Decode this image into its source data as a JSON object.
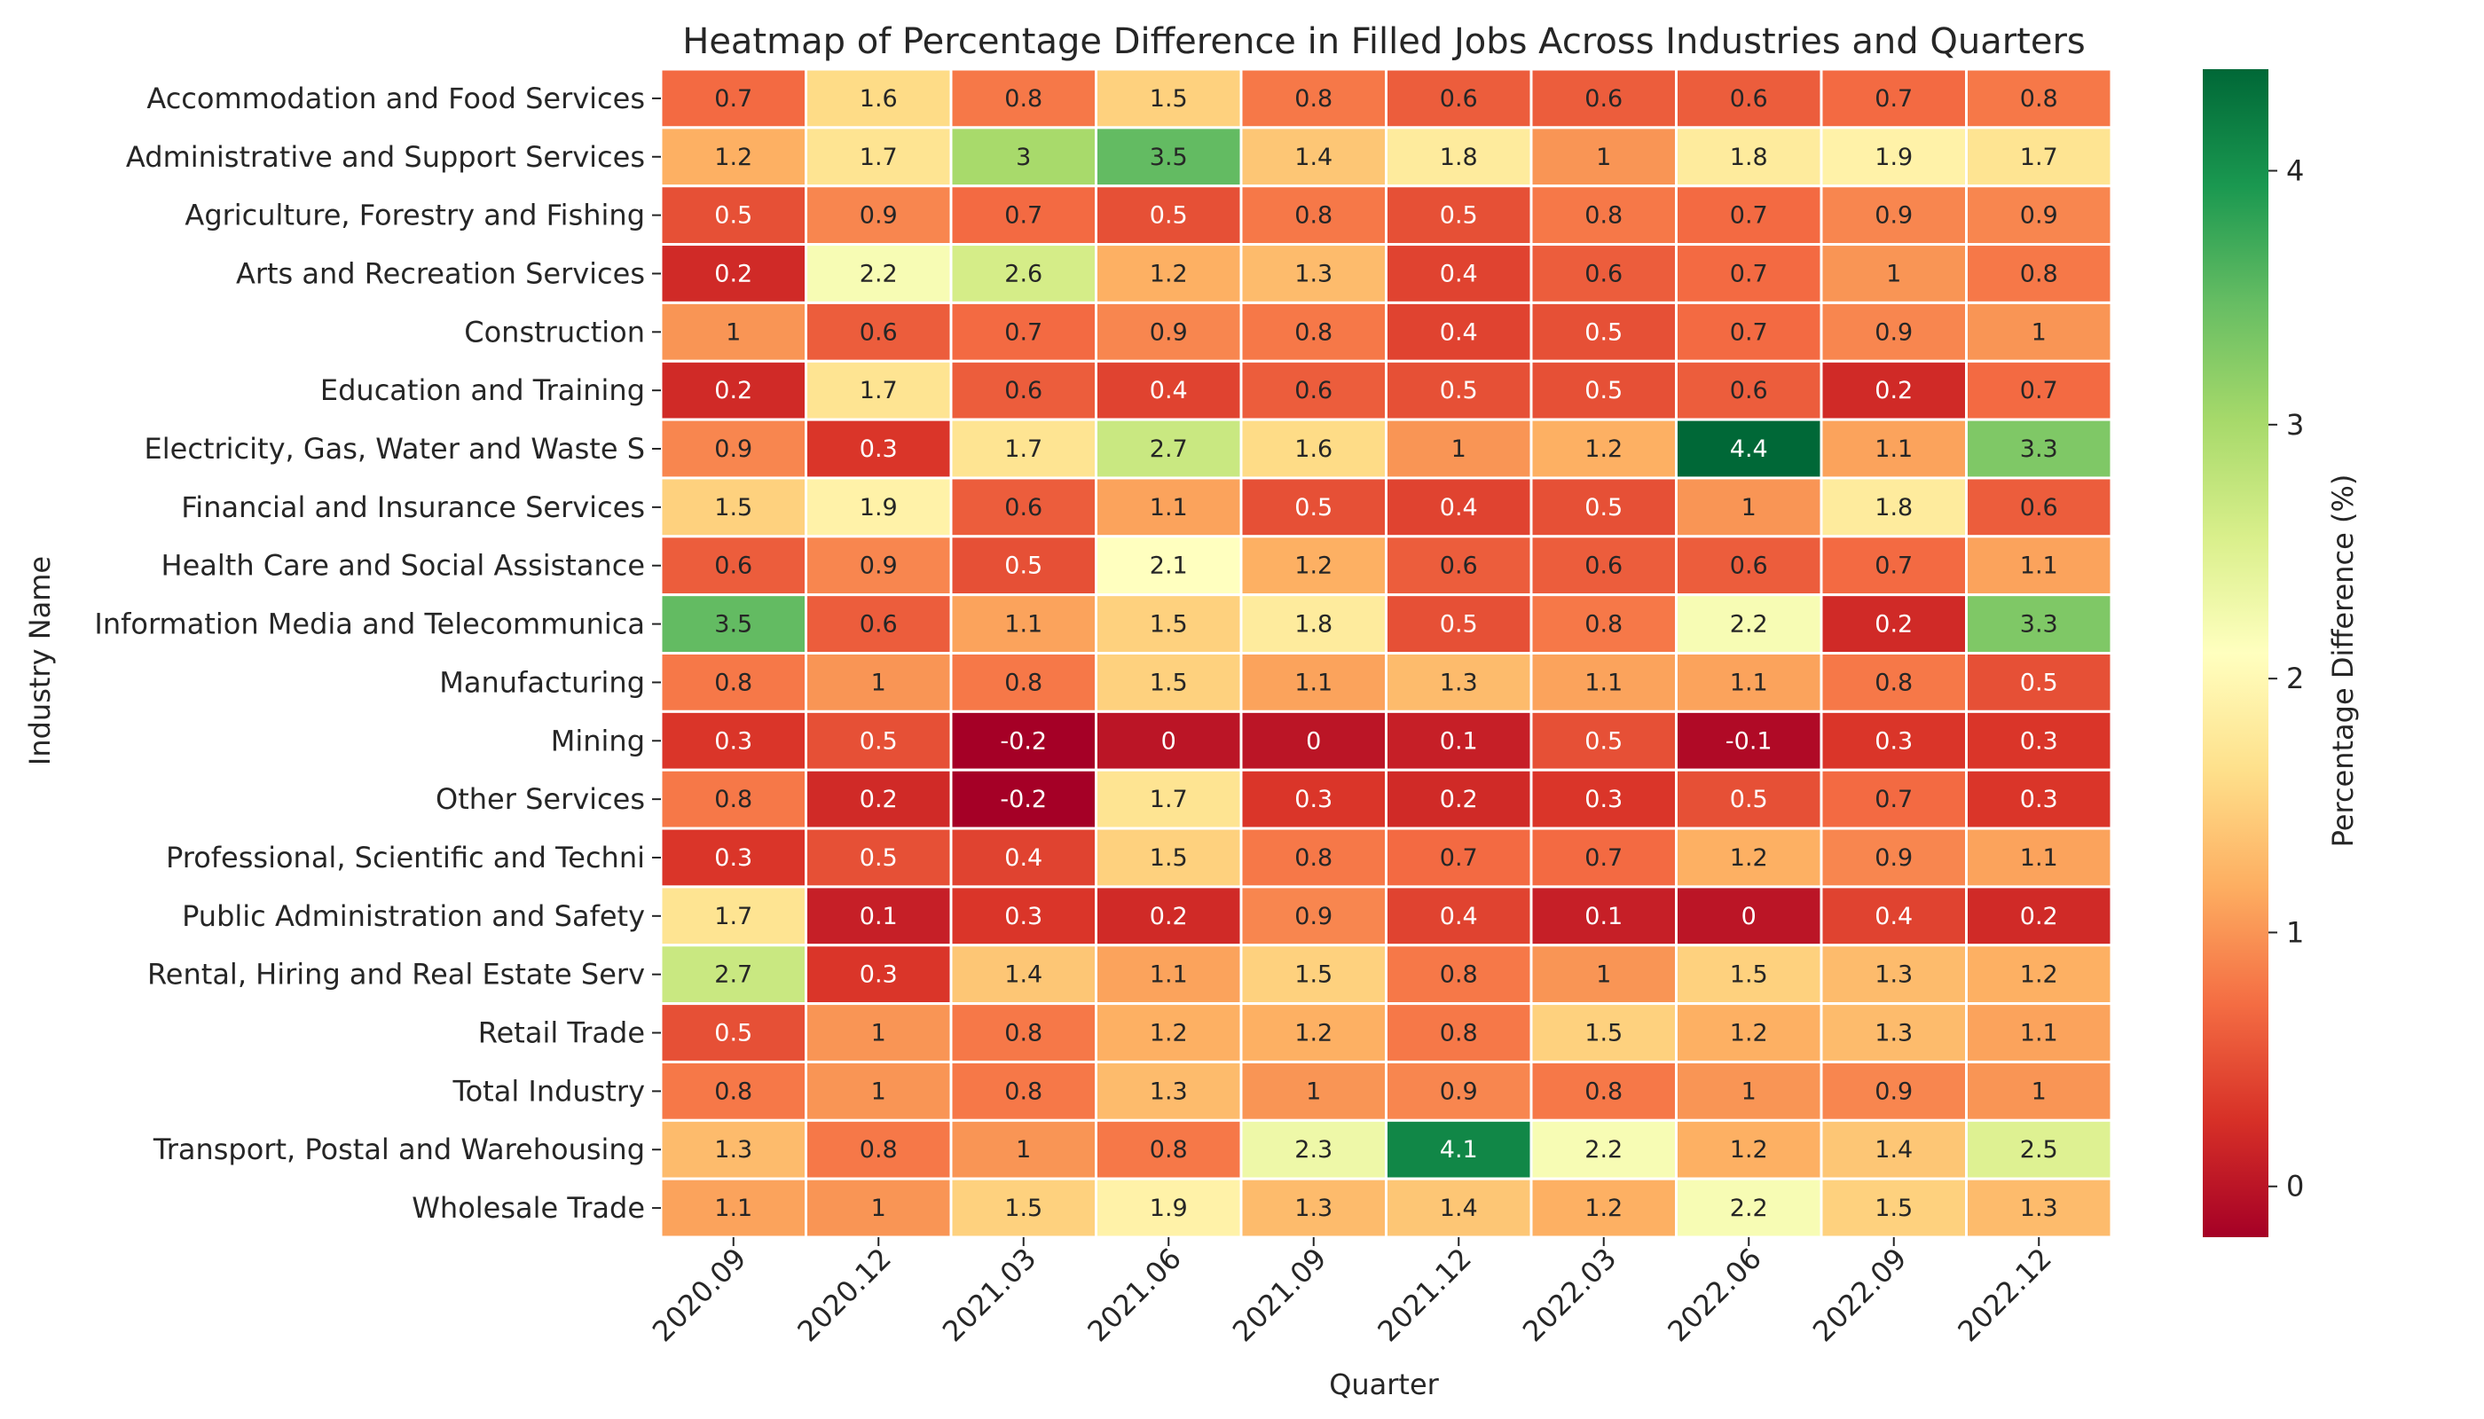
{
  "chart_data": {
    "type": "heatmap",
    "title": "Heatmap of Percentage Difference in Filled Jobs Across Industries and Quarters",
    "xlabel": "Quarter",
    "ylabel": "Industry Name",
    "colorbar_label": "Percentage Difference (%)",
    "colormap": "RdYlGn",
    "color_range": [
      -0.2,
      4.4
    ],
    "colorbar_ticks": [
      0,
      1,
      2,
      3,
      4
    ],
    "annotated": true,
    "x": [
      "2020.09",
      "2020.12",
      "2021.03",
      "2021.06",
      "2021.09",
      "2021.12",
      "2022.03",
      "2022.06",
      "2022.09",
      "2022.12"
    ],
    "y": [
      "Accommodation and Food Services",
      "Administrative and Support Services",
      "Agriculture, Forestry and Fishing",
      "Arts and Recreation Services",
      "Construction",
      "Education and Training",
      "Electricity, Gas, Water and Waste S",
      "Financial and Insurance Services",
      "Health Care and Social Assistance",
      "Information Media and Telecommunica",
      "Manufacturing",
      "Mining",
      "Other Services",
      "Professional, Scientific and Techni",
      "Public Administration and Safety",
      "Rental, Hiring and Real Estate Serv",
      "Retail Trade",
      "Total Industry",
      "Transport, Postal and Warehousing",
      "Wholesale Trade"
    ],
    "values": [
      [
        0.7,
        1.6,
        0.8,
        1.5,
        0.8,
        0.6,
        0.6,
        0.6,
        0.7,
        0.8
      ],
      [
        1.2,
        1.7,
        3,
        3.5,
        1.4,
        1.8,
        1,
        1.8,
        1.9,
        1.7
      ],
      [
        0.5,
        0.9,
        0.7,
        0.5,
        0.8,
        0.5,
        0.8,
        0.7,
        0.9,
        0.9
      ],
      [
        0.2,
        2.2,
        2.6,
        1.2,
        1.3,
        0.4,
        0.6,
        0.7,
        1,
        0.8
      ],
      [
        1,
        0.6,
        0.7,
        0.9,
        0.8,
        0.4,
        0.5,
        0.7,
        0.9,
        1
      ],
      [
        0.2,
        1.7,
        0.6,
        0.4,
        0.6,
        0.5,
        0.5,
        0.6,
        0.2,
        0.7
      ],
      [
        0.9,
        0.3,
        1.7,
        2.7,
        1.6,
        1,
        1.2,
        4.4,
        1.1,
        3.3
      ],
      [
        1.5,
        1.9,
        0.6,
        1.1,
        0.5,
        0.4,
        0.5,
        1,
        1.8,
        0.6
      ],
      [
        0.6,
        0.9,
        0.5,
        2.1,
        1.2,
        0.6,
        0.6,
        0.6,
        0.7,
        1.1
      ],
      [
        3.5,
        0.6,
        1.1,
        1.5,
        1.8,
        0.5,
        0.8,
        2.2,
        0.2,
        3.3
      ],
      [
        0.8,
        1,
        0.8,
        1.5,
        1.1,
        1.3,
        1.1,
        1.1,
        0.8,
        0.5
      ],
      [
        0.3,
        0.5,
        -0.2,
        0,
        0,
        0.1,
        0.5,
        -0.1,
        0.3,
        0.3
      ],
      [
        0.8,
        0.2,
        -0.2,
        1.7,
        0.3,
        0.2,
        0.3,
        0.5,
        0.7,
        0.3
      ],
      [
        0.3,
        0.5,
        0.4,
        1.5,
        0.8,
        0.7,
        0.7,
        1.2,
        0.9,
        1.1
      ],
      [
        1.7,
        0.1,
        0.3,
        0.2,
        0.9,
        0.4,
        0.1,
        0,
        0.4,
        0.2
      ],
      [
        2.7,
        0.3,
        1.4,
        1.1,
        1.5,
        0.8,
        1,
        1.5,
        1.3,
        1.2
      ],
      [
        0.5,
        1,
        0.8,
        1.2,
        1.2,
        0.8,
        1.5,
        1.2,
        1.3,
        1.1
      ],
      [
        0.8,
        1,
        0.8,
        1.3,
        1,
        0.9,
        0.8,
        1,
        0.9,
        1
      ],
      [
        1.3,
        0.8,
        1,
        0.8,
        2.3,
        4.1,
        2.2,
        1.2,
        1.4,
        2.5
      ],
      [
        1.1,
        1,
        1.5,
        1.9,
        1.3,
        1.4,
        1.2,
        2.2,
        1.5,
        1.3
      ]
    ]
  }
}
